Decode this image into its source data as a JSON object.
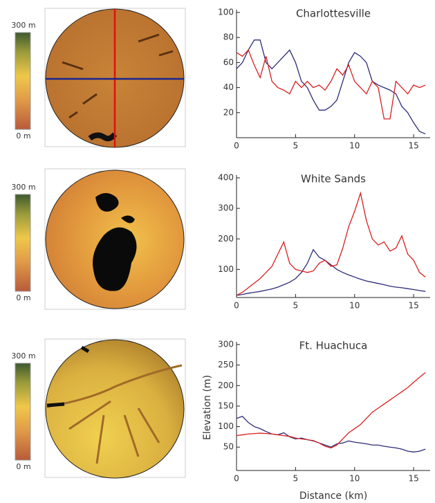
{
  "colorbars": [
    {
      "top": "300 m",
      "bottom": "0 m"
    },
    {
      "top": "300 m",
      "bottom": "0 m"
    },
    {
      "top": "300 m",
      "bottom": "0 m"
    }
  ],
  "chart_data": [
    {
      "type": "line",
      "title": "Charlottesville",
      "x": [
        0,
        0.5,
        1,
        1.5,
        2,
        2.5,
        3,
        3.5,
        4,
        4.5,
        5,
        5.5,
        6,
        6.5,
        7,
        7.5,
        8,
        8.5,
        9,
        9.5,
        10,
        10.5,
        11,
        11.5,
        12,
        12.5,
        13,
        13.5,
        14,
        14.5,
        15,
        15.5,
        16
      ],
      "series": [
        {
          "color": "#2b2a78",
          "values": [
            55,
            60,
            70,
            78,
            78,
            60,
            55,
            60,
            65,
            70,
            60,
            45,
            40,
            30,
            22,
            22,
            25,
            30,
            45,
            60,
            68,
            65,
            60,
            45,
            42,
            40,
            38,
            35,
            25,
            20,
            12,
            5,
            3
          ]
        },
        {
          "color": "#d81e1e",
          "values": [
            68,
            65,
            70,
            58,
            48,
            65,
            45,
            40,
            38,
            35,
            45,
            40,
            45,
            40,
            42,
            38,
            45,
            55,
            50,
            58,
            45,
            40,
            35,
            45,
            40,
            15,
            15,
            45,
            40,
            35,
            42,
            40,
            42
          ]
        }
      ],
      "xlim": [
        0,
        16.4
      ],
      "xticks": [
        0,
        5,
        10,
        15
      ],
      "ylim": [
        0,
        100
      ],
      "yticks": [
        20,
        40,
        60,
        80,
        100
      ]
    },
    {
      "type": "line",
      "title": "White Sands",
      "x": [
        0,
        0.5,
        1,
        1.5,
        2,
        2.5,
        3,
        3.5,
        4,
        4.5,
        5,
        5.5,
        6,
        6.5,
        7,
        7.5,
        8,
        8.5,
        9,
        9.5,
        10,
        10.5,
        11,
        11.5,
        12,
        12.5,
        13,
        13.5,
        14,
        14.5,
        15,
        15.5,
        16
      ],
      "series": [
        {
          "color": "#2b2a78",
          "values": [
            15,
            18,
            22,
            25,
            28,
            32,
            36,
            42,
            50,
            58,
            70,
            90,
            120,
            165,
            140,
            130,
            115,
            100,
            90,
            82,
            75,
            68,
            62,
            58,
            54,
            50,
            45,
            42,
            40,
            37,
            34,
            31,
            28
          ]
        },
        {
          "color": "#d81e1e",
          "values": [
            15,
            25,
            40,
            55,
            70,
            90,
            110,
            150,
            190,
            120,
            100,
            95,
            90,
            95,
            120,
            130,
            110,
            115,
            170,
            240,
            290,
            350,
            260,
            200,
            180,
            190,
            160,
            170,
            210,
            150,
            130,
            90,
            75
          ]
        }
      ],
      "xlim": [
        0,
        16.4
      ],
      "xticks": [
        0,
        5,
        10,
        15
      ],
      "ylim": [
        8,
        400
      ],
      "yticks": [
        100,
        200,
        300,
        400
      ]
    },
    {
      "type": "line",
      "title": "Ft. Huachuca",
      "xlabel": "Distance (km)",
      "ylabel": "Elevation (m)",
      "x": [
        0,
        0.5,
        1,
        1.5,
        2,
        2.5,
        3,
        3.5,
        4,
        4.5,
        5,
        5.5,
        6,
        6.5,
        7,
        7.5,
        8,
        8.5,
        9,
        9.5,
        10,
        10.5,
        11,
        11.5,
        12,
        12.5,
        13,
        13.5,
        14,
        14.5,
        15,
        15.5,
        16
      ],
      "series": [
        {
          "color": "#2b2a78",
          "values": [
            120,
            125,
            110,
            100,
            95,
            88,
            82,
            80,
            85,
            75,
            70,
            72,
            68,
            65,
            60,
            55,
            50,
            58,
            60,
            65,
            62,
            60,
            58,
            55,
            55,
            52,
            50,
            48,
            45,
            40,
            38,
            40,
            45
          ]
        },
        {
          "color": "#d81e1e",
          "values": [
            78,
            80,
            82,
            83,
            84,
            83,
            82,
            80,
            78,
            76,
            72,
            70,
            68,
            66,
            60,
            52,
            48,
            55,
            70,
            85,
            95,
            105,
            120,
            135,
            145,
            155,
            165,
            175,
            185,
            195,
            208,
            220,
            232
          ]
        }
      ],
      "xlim": [
        0,
        16.4
      ],
      "xticks": [
        0,
        5,
        10,
        15
      ],
      "ylim": [
        -7,
        300
      ],
      "yticks": [
        50,
        100,
        150,
        200,
        250,
        300
      ]
    }
  ]
}
